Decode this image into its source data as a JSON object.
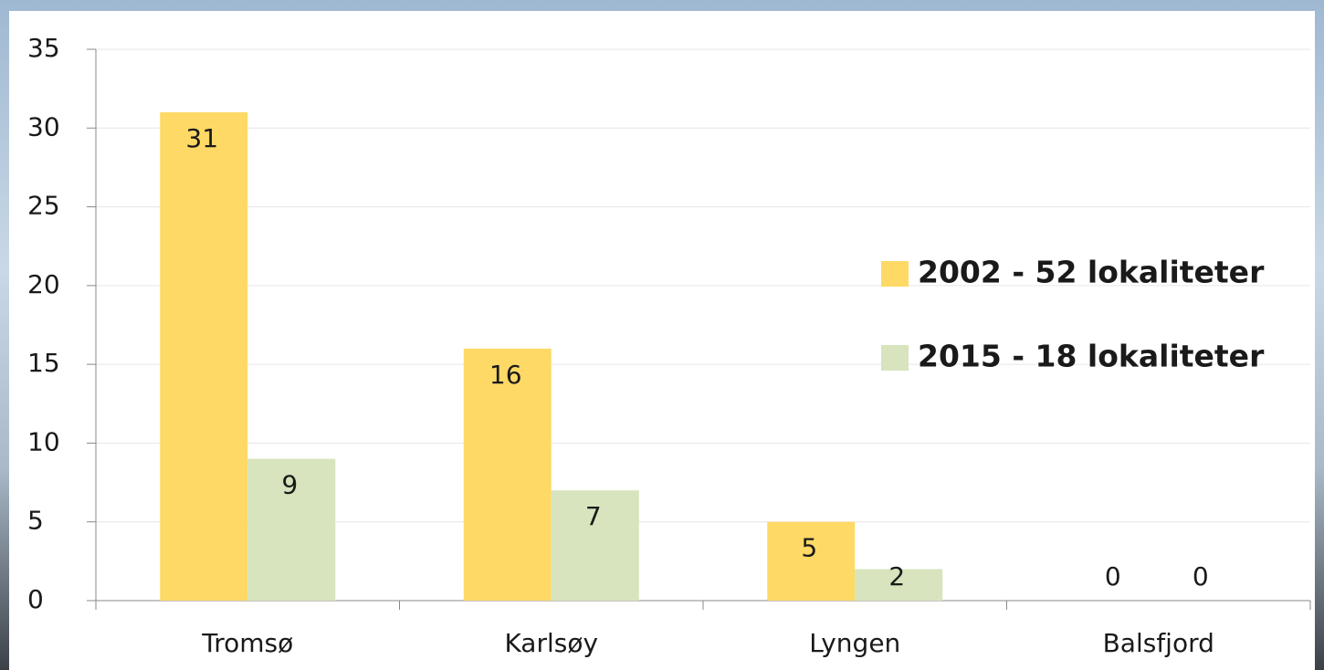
{
  "chart_data": {
    "type": "bar",
    "categories": [
      "Tromsø",
      "Karlsøy",
      "Lyngen",
      "Balsfjord"
    ],
    "series": [
      {
        "name": "2002 - 52 lokaliteter",
        "color": "#ffd966",
        "values": [
          31,
          16,
          5,
          0
        ]
      },
      {
        "name": "2015 - 18 lokaliteter",
        "color": "#d7e4bd",
        "values": [
          9,
          7,
          2,
          0
        ]
      }
    ],
    "ylim": [
      0,
      35
    ],
    "yticks": [
      0,
      5,
      10,
      15,
      20,
      25,
      30,
      35
    ],
    "grid": true,
    "legend": "right",
    "data_labels": true
  }
}
